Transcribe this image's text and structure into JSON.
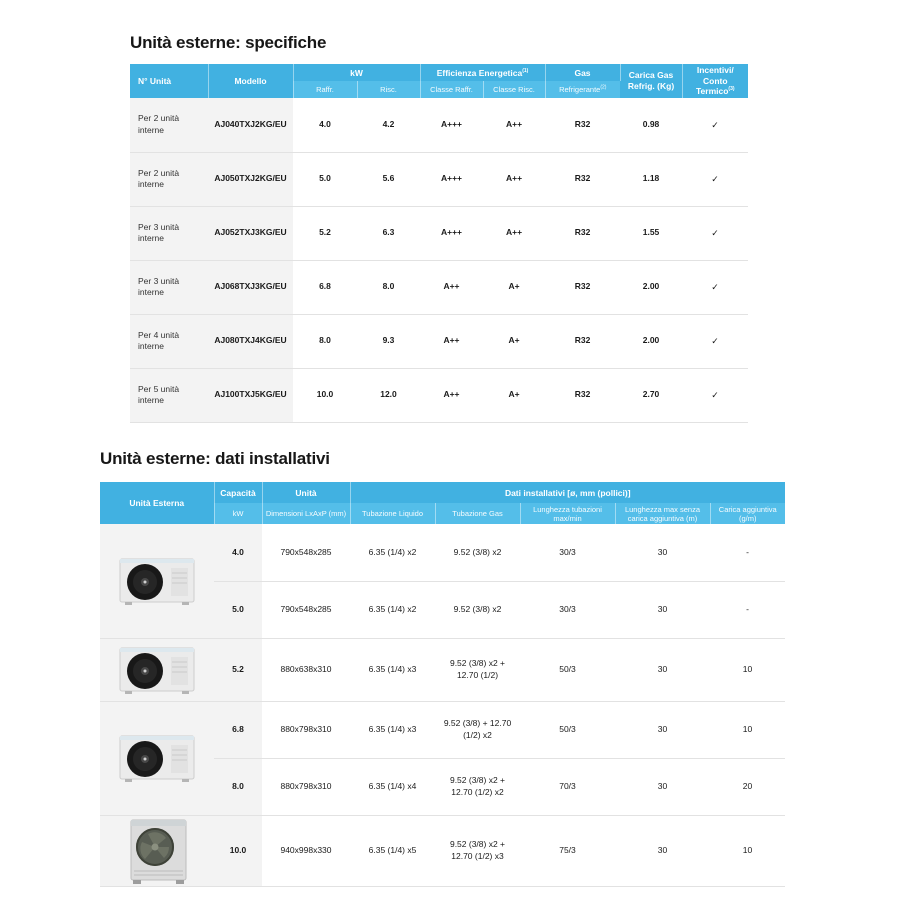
{
  "colors": {
    "header_blue": "#41b1e1",
    "header_blue_light": "#54bee9",
    "row_gray": "#f3f3f3",
    "border": "#e2e2e2"
  },
  "section1": {
    "title": "Unità esterne: specifiche",
    "header": {
      "col_unit": "N° Unità",
      "col_model": "Modello",
      "grp_kw": "kW",
      "sub_raff": "Raffr.",
      "sub_risc": "Risc.",
      "grp_eff": "Efficienza Energetica",
      "grp_eff_sup": "(1)",
      "sub_classe_raff": "Classe Raffr.",
      "sub_classe_risc": "Classe Risc.",
      "grp_gas": "Gas",
      "sub_refrigerante": "Refrigerante",
      "sub_refrigerante_sup": "(2)",
      "carica_l1": "Carica Gas",
      "carica_l2": "Refrig. (Kg)",
      "incentivi_l1": "Incentivi/",
      "incentivi_l2": "Conto Termico",
      "incentivi_sup": "(3)"
    },
    "rows": [
      {
        "unit": "Per 2 unità interne",
        "model": "AJ040TXJ2KG/EU",
        "raff": "4.0",
        "risc": "4.2",
        "classe_raff": "A+++",
        "classe_risc": "A++",
        "gas": "R32",
        "carica": "0.98",
        "incentivi": "✓"
      },
      {
        "unit": "Per 2 unità interne",
        "model": "AJ050TXJ2KG/EU",
        "raff": "5.0",
        "risc": "5.6",
        "classe_raff": "A+++",
        "classe_risc": "A++",
        "gas": "R32",
        "carica": "1.18",
        "incentivi": "✓"
      },
      {
        "unit": "Per 3 unità interne",
        "model": "AJ052TXJ3KG/EU",
        "raff": "5.2",
        "risc": "6.3",
        "classe_raff": "A+++",
        "classe_risc": "A++",
        "gas": "R32",
        "carica": "1.55",
        "incentivi": "✓"
      },
      {
        "unit": "Per 3 unità interne",
        "model": "AJ068TXJ3KG/EU",
        "raff": "6.8",
        "risc": "8.0",
        "classe_raff": "A++",
        "classe_risc": "A+",
        "gas": "R32",
        "carica": "2.00",
        "incentivi": "✓"
      },
      {
        "unit": "Per 4 unità interne",
        "model": "AJ080TXJ4KG/EU",
        "raff": "8.0",
        "risc": "9.3",
        "classe_raff": "A++",
        "classe_risc": "A+",
        "gas": "R32",
        "carica": "2.00",
        "incentivi": "✓"
      },
      {
        "unit": "Per 5 unità interne",
        "model": "AJ100TXJ5KG/EU",
        "raff": "10.0",
        "risc": "12.0",
        "classe_raff": "A++",
        "classe_risc": "A+",
        "gas": "R32",
        "carica": "2.70",
        "incentivi": "✓"
      }
    ]
  },
  "section2": {
    "title": "Unità esterne: dati installativi",
    "header": {
      "unita_esterna": "Unità Esterna",
      "capacita": "Capacità",
      "kw": "kW",
      "unita": "Unità",
      "dims": "Dimensioni LxAxP (mm)",
      "dati_installativi": "Dati installativi [ø, mm (pollici)]",
      "tub_liquido": "Tubazione Liquido",
      "tub_gas": "Tubazione Gas",
      "lung_tubazioni": "Lunghezza tubazioni max/min",
      "lung_max": "Lunghezza max senza carica aggiuntiva (m)",
      "carica_agg": "Carica aggiuntiva (g/m)"
    },
    "rows": [
      {
        "capacity": "4.0",
        "dims": "790x548x285",
        "liquido": "6.35 (1/4) x2",
        "gas": "9.52 (3/8) x2",
        "lunghezza": "30/3",
        "lunghezza_max": "30",
        "carica": "-"
      },
      {
        "capacity": "5.0",
        "dims": "790x548x285",
        "liquido": "6.35 (1/4) x2",
        "gas": "9.52 (3/8) x2",
        "lunghezza": "30/3",
        "lunghezza_max": "30",
        "carica": "-"
      },
      {
        "capacity": "5.2",
        "dims": "880x638x310",
        "liquido": "6.35 (1/4) x3",
        "gas": "9.52 (3/8) x2 + 12.70 (1/2)",
        "lunghezza": "50/3",
        "lunghezza_max": "30",
        "carica": "10"
      },
      {
        "capacity": "6.8",
        "dims": "880x798x310",
        "liquido": "6.35 (1/4) x3",
        "gas": "9.52 (3/8) + 12.70 (1/2) x2",
        "lunghezza": "50/3",
        "lunghezza_max": "30",
        "carica": "10"
      },
      {
        "capacity": "8.0",
        "dims": "880x798x310",
        "liquido": "6.35 (1/4) x4",
        "gas": "9.52 (3/8) x2 + 12.70 (1/2) x2",
        "lunghezza": "70/3",
        "lunghezza_max": "30",
        "carica": "20"
      },
      {
        "capacity": "10.0",
        "dims": "940x998x330",
        "liquido": "6.35 (1/4) x5",
        "gas": "9.52 (3/8) x2 + 12.70 (1/2) x3",
        "lunghezza": "75/3",
        "lunghezza_max": "30",
        "carica": "10"
      }
    ]
  }
}
